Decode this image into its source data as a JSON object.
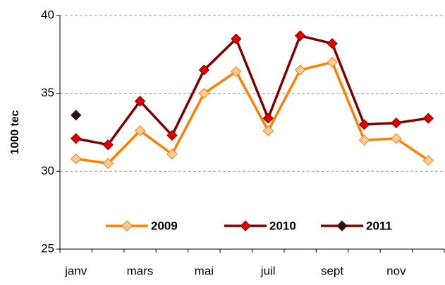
{
  "chart_data": {
    "type": "line",
    "ylabel": "1000 tec",
    "categories": [
      "janv",
      null,
      "mars",
      null,
      "mai",
      null,
      "juil",
      null,
      "sept",
      null,
      "nov",
      null
    ],
    "series": [
      {
        "name": "2009",
        "color": "#ff8000",
        "marker_color": "#ffcc99",
        "values": [
          30.8,
          30.5,
          32.6,
          31.1,
          35.0,
          36.4,
          32.6,
          36.5,
          37.0,
          32.0,
          32.1,
          30.7
        ]
      },
      {
        "name": "2010",
        "color": "#800000",
        "marker_color": "#e00000",
        "values": [
          32.1,
          31.7,
          34.5,
          32.3,
          36.5,
          38.5,
          33.4,
          38.7,
          38.2,
          33.0,
          33.1,
          33.4
        ]
      },
      {
        "name": "2011",
        "color": "#800000",
        "marker_color": "#1a1a1a",
        "values": [
          33.6,
          null,
          null,
          null,
          null,
          null,
          null,
          null,
          null,
          null,
          null,
          null
        ]
      }
    ],
    "ylim": [
      25,
      40
    ],
    "yticks": [
      25,
      30,
      35,
      40
    ],
    "grid": true,
    "legend": "bottom"
  }
}
